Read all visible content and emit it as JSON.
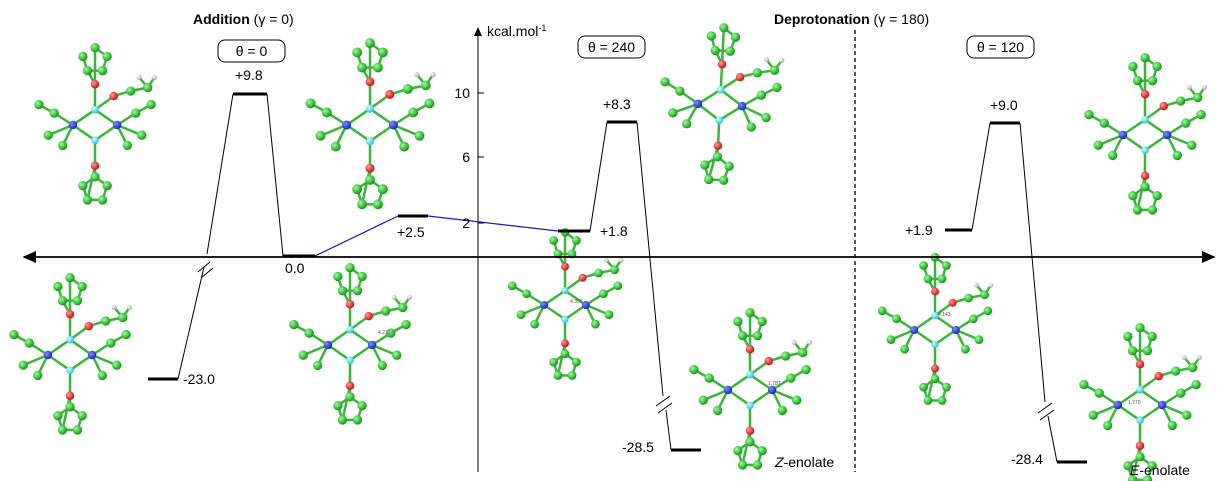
{
  "header": {
    "addition": {
      "bold": "Addition",
      "rest": "(γ = 0)"
    },
    "deprotonation": {
      "bold": "Deprotonation",
      "rest": "(γ = 180)"
    }
  },
  "panels": [
    "θ = 0",
    "θ = 240",
    "θ = 120"
  ],
  "axis": {
    "unit": "kcal.mol",
    "unit_exp": "-1",
    "ticks": [
      "10",
      "6",
      "2"
    ]
  },
  "levels": [
    "+9.8",
    "0.0",
    "+2.5",
    "-23.0",
    "+8.3",
    "+1.8",
    "-28.5",
    "+9.0",
    "+1.9",
    "-28.4"
  ],
  "products": [
    {
      "italic": "Z",
      "rest": "-enolate"
    },
    {
      "italic": "E",
      "rest": "-enolate"
    }
  ],
  "distances": [
    "4.232",
    "4.355",
    "4.143",
    "1.787",
    "1.770"
  ]
}
